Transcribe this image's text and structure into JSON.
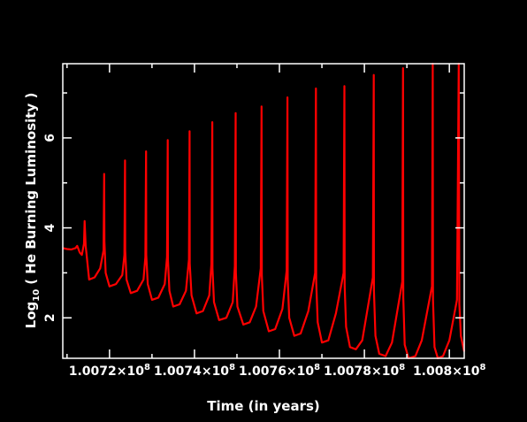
{
  "chart_data": {
    "type": "line",
    "xlabel": "Time (in years)",
    "ylabel_prefix": "Log",
    "ylabel_sub": "10",
    "ylabel_rest": "( He Burning Luminosity )",
    "x_tick_labels": [
      {
        "mantissa": "1.0072×10",
        "exp": "8",
        "value": 100720000
      },
      {
        "mantissa": "1.0074×10",
        "exp": "8",
        "value": 100740000
      },
      {
        "mantissa": "1.0076×10",
        "exp": "8",
        "value": 100760000
      },
      {
        "mantissa": "1.0078×10",
        "exp": "8",
        "value": 100780000
      },
      {
        "mantissa": "1.008×10",
        "exp": "8",
        "value": 100800000
      }
    ],
    "y_ticks": [
      2,
      4,
      6
    ],
    "xlim": [
      100709000,
      100803500
    ],
    "ylim": [
      1.1,
      7.65
    ],
    "line_color": "#ff0000",
    "axis_color": "#ffffff",
    "background": "#000000",
    "series": [
      {
        "x": [
          100709000,
          100710000,
          100711000,
          100712000,
          100712400,
          100713000,
          100713500,
          100714000,
          100714150,
          100714400,
          100715200,
          100716500,
          100717800,
          100718600,
          100718750,
          100718800,
          100719100,
          100720000,
          100721500,
          100723000,
          100723500,
          100723650,
          100723700,
          100724000,
          100725000,
          100726500,
          100728000,
          100728450,
          100728600,
          100728650,
          100729000,
          100730000,
          100731500,
          100733000,
          100733550,
          100733700,
          100733750,
          100734100,
          100735000,
          100736500,
          100738000,
          100738700,
          100738850,
          100738900,
          100739300,
          100740500,
          100742000,
          100743500,
          100744000,
          100744200,
          100744250,
          100744600,
          100745800,
          100747500,
          100749000,
          100749500,
          100749700,
          100749750,
          100750100,
          100751500,
          100753000,
          100754500,
          100755600,
          100755800,
          100755850,
          100756200,
          100757500,
          100759000,
          100760700,
          100761700,
          100761900,
          100761950,
          100762300,
          100763500,
          100765000,
          100766800,
          100768400,
          100768600,
          100768650,
          100769000,
          100770000,
          100771500,
          100773300,
          100775100,
          100775300,
          100775350,
          100775700,
          100776600,
          100778000,
          100779500,
          100782000,
          100782200,
          100782250,
          100782600,
          100783500,
          100785000,
          100786500,
          100788900,
          100789100,
          100789150,
          100789500,
          100790400,
          100792000,
          100793500,
          100795900,
          100796100,
          100796150,
          100796500,
          100797300,
          100798500,
          100800000,
          100801800,
          100802200,
          100802350,
          100802700,
          100803500
        ],
        "y": [
          3.55,
          3.53,
          3.52,
          3.55,
          3.6,
          3.45,
          3.4,
          3.65,
          4.15,
          3.6,
          2.85,
          2.9,
          3.1,
          3.5,
          5.2,
          3.7,
          3.0,
          2.7,
          2.75,
          2.95,
          3.4,
          5.5,
          3.5,
          2.85,
          2.55,
          2.6,
          2.85,
          3.35,
          5.7,
          3.4,
          2.75,
          2.4,
          2.45,
          2.75,
          3.35,
          5.95,
          3.3,
          2.6,
          2.25,
          2.3,
          2.6,
          3.3,
          6.15,
          3.2,
          2.5,
          2.1,
          2.15,
          2.5,
          3.2,
          6.35,
          3.1,
          2.35,
          1.95,
          2.0,
          2.35,
          3.15,
          6.55,
          3.0,
          2.25,
          1.85,
          1.9,
          2.25,
          3.1,
          6.7,
          2.95,
          2.15,
          1.7,
          1.75,
          2.2,
          3.05,
          6.9,
          2.85,
          2.0,
          1.6,
          1.65,
          2.15,
          3.0,
          7.1,
          2.8,
          1.9,
          1.45,
          1.5,
          2.1,
          3.0,
          7.15,
          2.7,
          1.8,
          1.35,
          1.3,
          1.5,
          2.9,
          7.4,
          2.6,
          1.6,
          1.2,
          1.15,
          1.45,
          2.8,
          7.55,
          2.45,
          1.4,
          1.1,
          1.15,
          1.5,
          2.7,
          7.65,
          2.4,
          1.35,
          1.1,
          1.15,
          1.5,
          2.4,
          7.65,
          2.3,
          1.6,
          1.25
        ]
      }
    ]
  }
}
